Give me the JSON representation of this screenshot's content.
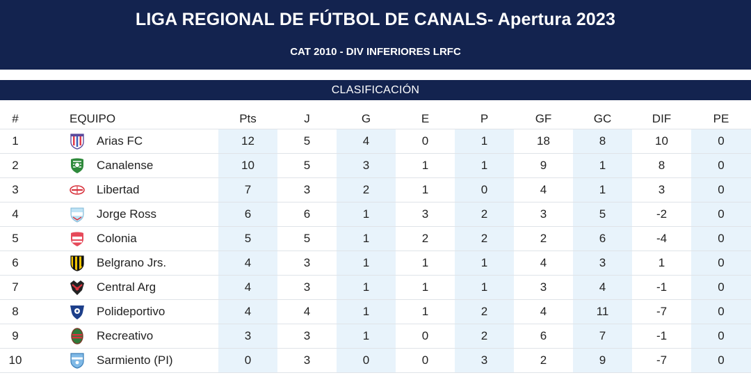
{
  "header": {
    "title": "LIGA REGIONAL DE FÚTBOL DE CANALS- Apertura 2023",
    "subtitle": "CAT 2010 - DIV INFERIORES LRFC"
  },
  "section": {
    "title": "CLASIFICACIÓN"
  },
  "columns": [
    "#",
    "EQUIPO",
    "Pts",
    "J",
    "G",
    "E",
    "P",
    "GF",
    "GC",
    "DIF",
    "PE"
  ],
  "rows": [
    {
      "pos": "1",
      "team": "Arias FC",
      "crest_icon": "arias-fc-crest-icon",
      "pts": "12",
      "j": "5",
      "g": "4",
      "e": "0",
      "p": "1",
      "gf": "18",
      "gc": "8",
      "dif": "10",
      "pe": "0"
    },
    {
      "pos": "2",
      "team": "Canalense",
      "crest_icon": "canalense-crest-icon",
      "pts": "10",
      "j": "5",
      "g": "3",
      "e": "1",
      "p": "1",
      "gf": "9",
      "gc": "1",
      "dif": "8",
      "pe": "0"
    },
    {
      "pos": "3",
      "team": "Libertad",
      "crest_icon": "libertad-crest-icon",
      "pts": "7",
      "j": "3",
      "g": "2",
      "e": "1",
      "p": "0",
      "gf": "4",
      "gc": "1",
      "dif": "3",
      "pe": "0"
    },
    {
      "pos": "4",
      "team": "Jorge Ross",
      "crest_icon": "jorge-ross-crest-icon",
      "pts": "6",
      "j": "6",
      "g": "1",
      "e": "3",
      "p": "2",
      "gf": "3",
      "gc": "5",
      "dif": "-2",
      "pe": "0"
    },
    {
      "pos": "5",
      "team": "Colonia",
      "crest_icon": "colonia-crest-icon",
      "pts": "5",
      "j": "5",
      "g": "1",
      "e": "2",
      "p": "2",
      "gf": "2",
      "gc": "6",
      "dif": "-4",
      "pe": "0"
    },
    {
      "pos": "6",
      "team": "Belgrano Jrs.",
      "crest_icon": "belgrano-jrs-crest-icon",
      "pts": "4",
      "j": "3",
      "g": "1",
      "e": "1",
      "p": "1",
      "gf": "4",
      "gc": "3",
      "dif": "1",
      "pe": "0"
    },
    {
      "pos": "7",
      "team": "Central Arg",
      "crest_icon": "central-arg-crest-icon",
      "pts": "4",
      "j": "3",
      "g": "1",
      "e": "1",
      "p": "1",
      "gf": "3",
      "gc": "4",
      "dif": "-1",
      "pe": "0"
    },
    {
      "pos": "8",
      "team": "Polideportivo",
      "crest_icon": "polideportivo-crest-icon",
      "pts": "4",
      "j": "4",
      "g": "1",
      "e": "1",
      "p": "2",
      "gf": "4",
      "gc": "11",
      "dif": "-7",
      "pe": "0"
    },
    {
      "pos": "9",
      "team": "Recreativo",
      "crest_icon": "recreativo-crest-icon",
      "pts": "3",
      "j": "3",
      "g": "1",
      "e": "0",
      "p": "2",
      "gf": "6",
      "gc": "7",
      "dif": "-1",
      "pe": "0"
    },
    {
      "pos": "10",
      "team": "Sarmiento (PI)",
      "crest_icon": "sarmiento-crest-icon",
      "pts": "0",
      "j": "3",
      "g": "0",
      "e": "0",
      "p": "3",
      "gf": "2",
      "gc": "9",
      "dif": "-7",
      "pe": "0"
    }
  ],
  "colors": {
    "header_bg": "#13234f",
    "shaded_column": "#e8f3fb",
    "row_border": "#dfe3e8"
  }
}
